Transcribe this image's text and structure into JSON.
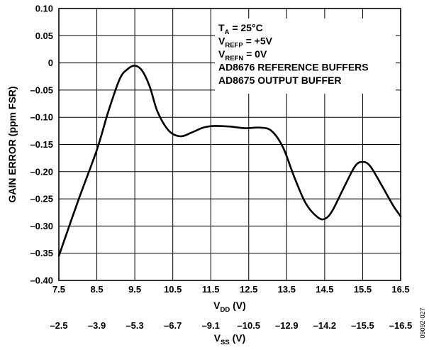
{
  "chart_data": {
    "type": "line",
    "xlabel": {
      "main": "V",
      "sub": "DD",
      "unit": " (V)"
    },
    "x2label": {
      "main": "V",
      "sub": "SS",
      "unit": " (V)"
    },
    "ylabel": "GAIN ERROR (ppm FSR)",
    "xlim": [
      7.5,
      16.5
    ],
    "ylim": [
      -0.4,
      0.1
    ],
    "grid": true,
    "x_ticks": [
      7.5,
      8.5,
      9.5,
      10.5,
      11.5,
      12.5,
      13.5,
      14.5,
      15.5,
      16.5
    ],
    "x_tick_labels": [
      "7.5",
      "8.5",
      "9.5",
      "10.5",
      "11.5",
      "12.5",
      "13.5",
      "14.5",
      "15.5",
      "16.5"
    ],
    "x2_tick_labels": [
      "–2.5",
      "–3.9",
      "–5.3",
      "–6.7",
      "–9.1",
      "–10.5",
      "–12.9",
      "–14.2",
      "–15.5",
      "–16.5"
    ],
    "y_ticks": [
      0.1,
      0.05,
      0,
      -0.05,
      -0.1,
      -0.15,
      -0.2,
      -0.25,
      -0.3,
      -0.35,
      -0.4
    ],
    "y_tick_labels": [
      "0.10",
      "0.05",
      "0",
      "–0.05",
      "–0.10",
      "–0.15",
      "–0.20",
      "–0.25",
      "–0.30",
      "–0.35",
      "–0.40"
    ],
    "series": [
      {
        "x": [
          7.5,
          8.0,
          8.5,
          8.8,
          9.1,
          9.3,
          9.5,
          9.7,
          9.9,
          10.1,
          10.4,
          10.7,
          11.0,
          11.3,
          11.6,
          12.0,
          12.4,
          12.8,
          13.1,
          13.4,
          13.7,
          14.0,
          14.3,
          14.5,
          14.7,
          15.0,
          15.3,
          15.5,
          15.7,
          16.0,
          16.3,
          16.5
        ],
        "y": [
          -0.355,
          -0.255,
          -0.16,
          -0.09,
          -0.03,
          -0.012,
          -0.005,
          -0.015,
          -0.045,
          -0.09,
          -0.125,
          -0.135,
          -0.128,
          -0.119,
          -0.116,
          -0.117,
          -0.12,
          -0.119,
          -0.125,
          -0.155,
          -0.21,
          -0.258,
          -0.283,
          -0.287,
          -0.272,
          -0.23,
          -0.19,
          -0.182,
          -0.19,
          -0.225,
          -0.262,
          -0.282
        ]
      }
    ],
    "annotations": [
      {
        "main": "T",
        "sub": "A",
        "rest": " = 25°C"
      },
      {
        "main": "V",
        "sub": "REFP",
        "rest": " = +5V"
      },
      {
        "main": "V",
        "sub": "REFN",
        "rest": " = 0V"
      },
      {
        "main": "AD8676 REFERENCE BUFFERS",
        "sub": "",
        "rest": ""
      },
      {
        "main": "AD8675 OUTPUT BUFFER",
        "sub": "",
        "rest": ""
      }
    ],
    "figure_id": "09092-027"
  }
}
